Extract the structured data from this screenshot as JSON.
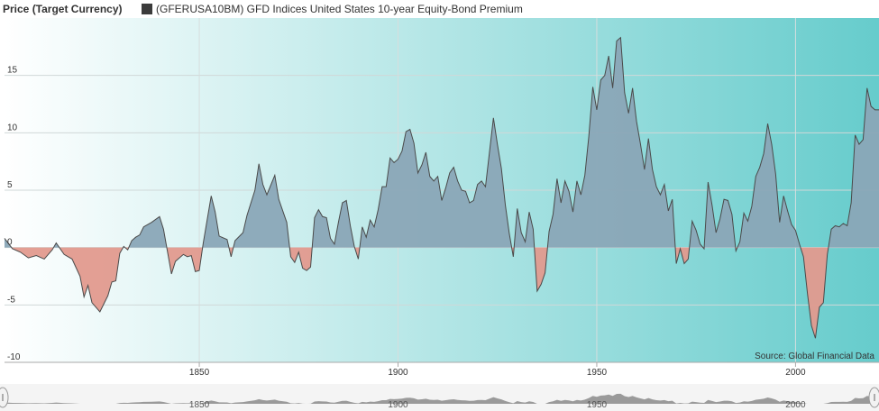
{
  "header": {
    "y_title": "Price (Target Currency)",
    "legend_label": "(GFERUSA10BM) GFD Indices United States 10-year Equity-Bond Premium"
  },
  "source": "Source: Global Financial Data",
  "colors": {
    "positive_fill": "#8aa7b7",
    "negative_fill": "#e19a8e",
    "line": "#4a4a4a",
    "bg_left": "#ffffff",
    "bg_right": "#66cccc",
    "navigator_bg": "#f4f4f4",
    "navigator_fill": "#9a9a9a"
  },
  "chart_data": {
    "type": "area",
    "title": "(GFERUSA10BM) GFD Indices United States 10-year Equity-Bond Premium",
    "ylabel": "Price (Target Currency)",
    "xlim": [
      1801,
      2021
    ],
    "ylim": [
      -10,
      20
    ],
    "x_ticks": [
      1850,
      1900,
      1950,
      2000
    ],
    "y_ticks": [
      -10,
      -5,
      0,
      5,
      10,
      15
    ],
    "grid": true,
    "series": [
      {
        "name": "(GFERUSA10BM) GFD Indices United States 10-year Equity-Bond Premium",
        "points": [
          [
            1801,
            0.8
          ],
          [
            1803,
            -0.1
          ],
          [
            1805,
            -0.4
          ],
          [
            1807,
            -0.9
          ],
          [
            1809,
            -0.7
          ],
          [
            1811,
            -1.0
          ],
          [
            1813,
            -0.2
          ],
          [
            1814,
            0.4
          ],
          [
            1816,
            -0.6
          ],
          [
            1818,
            -1.0
          ],
          [
            1820,
            -2.5
          ],
          [
            1821,
            -4.3
          ],
          [
            1822,
            -3.3
          ],
          [
            1823,
            -4.8
          ],
          [
            1825,
            -5.6
          ],
          [
            1827,
            -4.2
          ],
          [
            1828,
            -3.0
          ],
          [
            1829,
            -2.9
          ],
          [
            1830,
            -0.5
          ],
          [
            1831,
            0.1
          ],
          [
            1832,
            -0.2
          ],
          [
            1833,
            0.6
          ],
          [
            1834,
            0.9
          ],
          [
            1835,
            1.1
          ],
          [
            1836,
            1.8
          ],
          [
            1838,
            2.2
          ],
          [
            1840,
            2.7
          ],
          [
            1841,
            1.6
          ],
          [
            1843,
            -2.3
          ],
          [
            1844,
            -1.2
          ],
          [
            1846,
            -0.6
          ],
          [
            1847,
            -0.8
          ],
          [
            1848,
            -0.7
          ],
          [
            1849,
            -2.1
          ],
          [
            1850,
            -2.0
          ],
          [
            1851,
            0.4
          ],
          [
            1853,
            4.5
          ],
          [
            1854,
            3.1
          ],
          [
            1855,
            1.0
          ],
          [
            1857,
            0.7
          ],
          [
            1858,
            -0.8
          ],
          [
            1859,
            0.6
          ],
          [
            1861,
            1.3
          ],
          [
            1862,
            2.8
          ],
          [
            1864,
            5.0
          ],
          [
            1865,
            7.3
          ],
          [
            1866,
            5.5
          ],
          [
            1867,
            4.6
          ],
          [
            1869,
            6.3
          ],
          [
            1870,
            4.2
          ],
          [
            1872,
            2.2
          ],
          [
            1873,
            -0.8
          ],
          [
            1874,
            -1.3
          ],
          [
            1875,
            -0.4
          ],
          [
            1876,
            -1.8
          ],
          [
            1877,
            -2.0
          ],
          [
            1878,
            -1.7
          ],
          [
            1879,
            2.6
          ],
          [
            1880,
            3.3
          ],
          [
            1881,
            2.7
          ],
          [
            1882,
            2.6
          ],
          [
            1883,
            0.8
          ],
          [
            1884,
            0.3
          ],
          [
            1885,
            2.2
          ],
          [
            1886,
            3.9
          ],
          [
            1887,
            4.1
          ],
          [
            1888,
            1.9
          ],
          [
            1889,
            0.1
          ],
          [
            1890,
            -1.0
          ],
          [
            1891,
            1.8
          ],
          [
            1892,
            0.9
          ],
          [
            1893,
            2.4
          ],
          [
            1894,
            1.8
          ],
          [
            1895,
            3.3
          ],
          [
            1896,
            5.3
          ],
          [
            1897,
            5.3
          ],
          [
            1898,
            7.8
          ],
          [
            1899,
            7.4
          ],
          [
            1900,
            7.7
          ],
          [
            1901,
            8.4
          ],
          [
            1902,
            10.1
          ],
          [
            1903,
            10.3
          ],
          [
            1904,
            9.1
          ],
          [
            1905,
            6.5
          ],
          [
            1906,
            7.2
          ],
          [
            1907,
            8.3
          ],
          [
            1908,
            6.2
          ],
          [
            1909,
            5.8
          ],
          [
            1910,
            6.2
          ],
          [
            1911,
            4.1
          ],
          [
            1912,
            5.2
          ],
          [
            1913,
            6.5
          ],
          [
            1914,
            7.0
          ],
          [
            1915,
            5.8
          ],
          [
            1916,
            5.0
          ],
          [
            1917,
            4.9
          ],
          [
            1918,
            3.9
          ],
          [
            1919,
            4.1
          ],
          [
            1920,
            5.5
          ],
          [
            1921,
            5.8
          ],
          [
            1922,
            5.3
          ],
          [
            1924,
            11.3
          ],
          [
            1925,
            9.0
          ],
          [
            1926,
            6.9
          ],
          [
            1927,
            3.7
          ],
          [
            1928,
            1.2
          ],
          [
            1929,
            -0.8
          ],
          [
            1930,
            3.4
          ],
          [
            1931,
            1.3
          ],
          [
            1932,
            0.5
          ],
          [
            1933,
            3.1
          ],
          [
            1934,
            1.6
          ],
          [
            1935,
            -3.8
          ],
          [
            1936,
            -3.2
          ],
          [
            1937,
            -2.2
          ],
          [
            1938,
            1.4
          ],
          [
            1939,
            2.9
          ],
          [
            1940,
            6.0
          ],
          [
            1941,
            3.9
          ],
          [
            1942,
            5.8
          ],
          [
            1943,
            4.9
          ],
          [
            1944,
            3.1
          ],
          [
            1945,
            5.8
          ],
          [
            1946,
            4.6
          ],
          [
            1947,
            6.3
          ],
          [
            1948,
            9.7
          ],
          [
            1949,
            14.0
          ],
          [
            1950,
            12.0
          ],
          [
            1951,
            14.6
          ],
          [
            1952,
            15.0
          ],
          [
            1953,
            16.7
          ],
          [
            1954,
            13.9
          ],
          [
            1955,
            18.0
          ],
          [
            1956,
            18.3
          ],
          [
            1957,
            13.5
          ],
          [
            1958,
            11.7
          ],
          [
            1959,
            13.9
          ],
          [
            1960,
            11.0
          ],
          [
            1961,
            9.0
          ],
          [
            1962,
            6.8
          ],
          [
            1963,
            9.5
          ],
          [
            1964,
            6.8
          ],
          [
            1965,
            5.3
          ],
          [
            1966,
            4.6
          ],
          [
            1967,
            5.5
          ],
          [
            1968,
            3.2
          ],
          [
            1969,
            4.2
          ],
          [
            1970,
            -1.4
          ],
          [
            1971,
            -0.1
          ],
          [
            1972,
            -1.4
          ],
          [
            1973,
            -1.0
          ],
          [
            1974,
            2.3
          ],
          [
            1975,
            1.5
          ],
          [
            1976,
            0.3
          ],
          [
            1977,
            -0.1
          ],
          [
            1978,
            5.7
          ],
          [
            1979,
            3.7
          ],
          [
            1980,
            1.3
          ],
          [
            1981,
            2.5
          ],
          [
            1982,
            4.2
          ],
          [
            1983,
            4.1
          ],
          [
            1984,
            2.9
          ],
          [
            1985,
            -0.3
          ],
          [
            1986,
            0.5
          ],
          [
            1987,
            3.0
          ],
          [
            1988,
            2.3
          ],
          [
            1989,
            3.6
          ],
          [
            1990,
            6.2
          ],
          [
            1991,
            7.0
          ],
          [
            1992,
            8.2
          ],
          [
            1993,
            10.8
          ],
          [
            1994,
            9.0
          ],
          [
            1995,
            6.4
          ],
          [
            1996,
            2.2
          ],
          [
            1997,
            4.5
          ],
          [
            1998,
            3.2
          ],
          [
            1999,
            2.0
          ],
          [
            2000,
            1.5
          ],
          [
            2001,
            0.3
          ],
          [
            2002,
            -0.8
          ],
          [
            2003,
            -4.0
          ],
          [
            2004,
            -6.8
          ],
          [
            2005,
            -7.9
          ],
          [
            2006,
            -5.2
          ],
          [
            2007,
            -4.8
          ],
          [
            2008,
            -0.6
          ],
          [
            2009,
            1.6
          ],
          [
            2010,
            1.9
          ],
          [
            2011,
            1.8
          ],
          [
            2012,
            2.1
          ],
          [
            2013,
            1.9
          ],
          [
            2014,
            3.9
          ],
          [
            2015,
            9.8
          ],
          [
            2016,
            9.0
          ],
          [
            2017,
            9.4
          ],
          [
            2018,
            13.9
          ],
          [
            2019,
            12.3
          ],
          [
            2020,
            12.0
          ],
          [
            2021,
            12.0
          ]
        ]
      }
    ]
  }
}
